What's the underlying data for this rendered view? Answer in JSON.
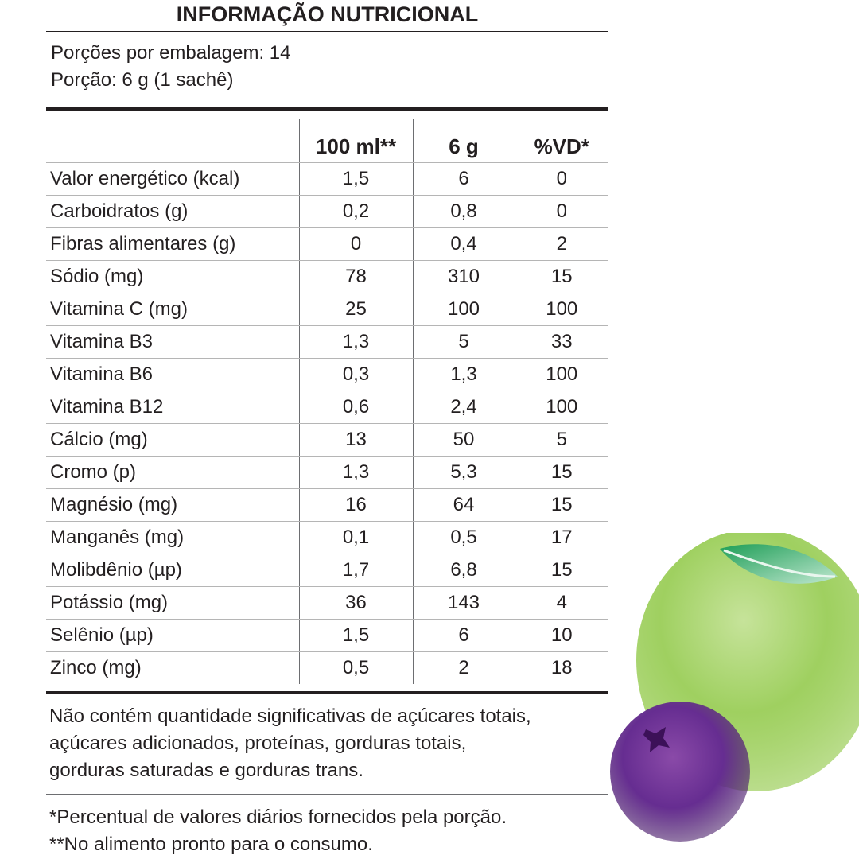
{
  "title": "INFORMAÇÃO NUTRICIONAL",
  "serving": {
    "per_package": "Porções por embalagem: 14",
    "portion": "Porção: 6 g (1 sachê)"
  },
  "table": {
    "headers": [
      "",
      "100 ml**",
      "6 g",
      "%VD*"
    ],
    "rows": [
      {
        "name": "Valor energético (kcal)",
        "per100": "1,5",
        "per6g": "6",
        "vd": "0"
      },
      {
        "name": "Carboidratos (g)",
        "per100": "0,2",
        "per6g": "0,8",
        "vd": "0"
      },
      {
        "name": "Fibras alimentares (g)",
        "per100": "0",
        "per6g": "0,4",
        "vd": "2"
      },
      {
        "name": "Sódio (mg)",
        "per100": "78",
        "per6g": "310",
        "vd": "15"
      },
      {
        "name": "Vitamina C (mg)",
        "per100": "25",
        "per6g": "100",
        "vd": "100"
      },
      {
        "name": "Vitamina B3",
        "per100": "1,3",
        "per6g": "5",
        "vd": "33"
      },
      {
        "name": "Vitamina B6",
        "per100": "0,3",
        "per6g": "1,3",
        "vd": "100"
      },
      {
        "name": "Vitamina B12",
        "per100": "0,6",
        "per6g": "2,4",
        "vd": "100"
      },
      {
        "name": "Cálcio (mg)",
        "per100": "13",
        "per6g": "50",
        "vd": "5"
      },
      {
        "name": "Cromo (p)",
        "per100": "1,3",
        "per6g": "5,3",
        "vd": "15"
      },
      {
        "name": "Magnésio (mg)",
        "per100": "16",
        "per6g": "64",
        "vd": "15"
      },
      {
        "name": "Manganês (mg)",
        "per100": "0,1",
        "per6g": "0,5",
        "vd": "17"
      },
      {
        "name": "Molibdênio (µp)",
        "per100": "1,7",
        "per6g": "6,8",
        "vd": "15"
      },
      {
        "name": "Potássio (mg)",
        "per100": "36",
        "per6g": "143",
        "vd": "4"
      },
      {
        "name": "Selênio (µp)",
        "per100": "1,5",
        "per6g": "6",
        "vd": "10"
      },
      {
        "name": "Zinco (mg)",
        "per100": "0,5",
        "per6g": "2",
        "vd": "18"
      }
    ]
  },
  "note": {
    "line1": "Não contém quantidade significativas de açúcares totais,",
    "line2": "açúcares adicionados, proteínas, gorduras totais,",
    "line3": "gorduras saturadas e gorduras trans."
  },
  "footnotes": {
    "vd": "*Percentual de valores diários fornecidos pela porção.",
    "ready": "**No alimento pronto para o consumo."
  },
  "colors": {
    "text": "#231f20",
    "lime": "#8cc63f",
    "leaf": "#39b54a",
    "berry": "#662d91"
  },
  "icons": [
    "lime-fruit-icon",
    "leaf-icon",
    "acai-berry-icon"
  ]
}
